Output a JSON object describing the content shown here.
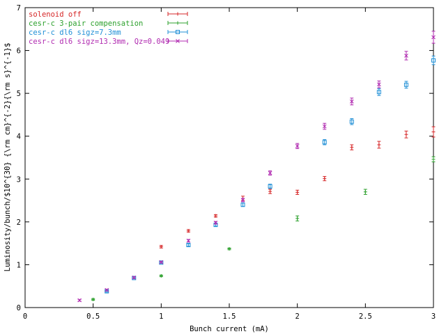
{
  "chart_data": {
    "type": "scatter",
    "xlabel": "Bunch current (mA)",
    "ylabel": "Luminosity/bunch/$10^{30} {\\rm cm}^{-2}{\\rm s}^{-1}$",
    "xlim": [
      0,
      3
    ],
    "ylim": [
      0,
      7
    ],
    "x_ticks": [
      "0",
      "0.5",
      "1",
      "1.5",
      "2",
      "2.5",
      "3"
    ],
    "y_ticks": [
      "0",
      "1",
      "2",
      "3",
      "4",
      "5",
      "6",
      "7"
    ],
    "grid": false,
    "legend_position": "top-left",
    "series": [
      {
        "name": "solenoid off",
        "color": "#d62728",
        "marker": "plus",
        "points": [
          {
            "x": 1.0,
            "y": 1.42,
            "err": 0.03
          },
          {
            "x": 1.2,
            "y": 1.79,
            "err": 0.03
          },
          {
            "x": 1.4,
            "y": 2.14,
            "err": 0.03
          },
          {
            "x": 1.6,
            "y": 2.55,
            "err": 0.05
          },
          {
            "x": 1.8,
            "y": 2.71,
            "err": 0.05
          },
          {
            "x": 2.0,
            "y": 2.69,
            "err": 0.05
          },
          {
            "x": 2.2,
            "y": 3.01,
            "err": 0.05
          },
          {
            "x": 2.4,
            "y": 3.74,
            "err": 0.06
          },
          {
            "x": 2.6,
            "y": 3.8,
            "err": 0.08
          },
          {
            "x": 2.8,
            "y": 4.04,
            "err": 0.08
          },
          {
            "x": 3.0,
            "y": 4.1,
            "err": 0.12
          }
        ]
      },
      {
        "name": "cesr-c 3-pair compensation",
        "color": "#2ca02c",
        "marker": "plus",
        "points": [
          {
            "x": 0.5,
            "y": 0.19,
            "err": 0.02
          },
          {
            "x": 1.0,
            "y": 0.74,
            "err": 0.02
          },
          {
            "x": 1.5,
            "y": 1.37,
            "err": 0.02
          },
          {
            "x": 2.0,
            "y": 2.08,
            "err": 0.06
          },
          {
            "x": 2.5,
            "y": 2.7,
            "err": 0.06
          },
          {
            "x": 3.0,
            "y": 3.46,
            "err": 0.06
          }
        ]
      },
      {
        "name": "cesr-c dl6 sigz=7.3mm",
        "color": "#1f8fd6",
        "marker": "square",
        "points": [
          {
            "x": 0.6,
            "y": 0.38,
            "err": 0.02
          },
          {
            "x": 0.8,
            "y": 0.69,
            "err": 0.02
          },
          {
            "x": 1.0,
            "y": 1.05,
            "err": 0.02
          },
          {
            "x": 1.2,
            "y": 1.46,
            "err": 0.03
          },
          {
            "x": 1.4,
            "y": 1.93,
            "err": 0.03
          },
          {
            "x": 1.6,
            "y": 2.4,
            "err": 0.04
          },
          {
            "x": 1.8,
            "y": 2.83,
            "err": 0.05
          },
          {
            "x": 2.2,
            "y": 3.86,
            "err": 0.06
          },
          {
            "x": 2.4,
            "y": 4.34,
            "err": 0.07
          },
          {
            "x": 2.6,
            "y": 5.03,
            "err": 0.08
          },
          {
            "x": 2.8,
            "y": 5.2,
            "err": 0.08
          },
          {
            "x": 3.0,
            "y": 5.77,
            "err": 0.1
          }
        ]
      },
      {
        "name": "cesr-c dl6 sigz=13.3mm, Qz=0.049",
        "color": "#b02ab0",
        "marker": "cross",
        "points": [
          {
            "x": 0.4,
            "y": 0.17,
            "err": 0.02
          },
          {
            "x": 0.6,
            "y": 0.41,
            "err": 0.02
          },
          {
            "x": 0.8,
            "y": 0.7,
            "err": 0.02
          },
          {
            "x": 1.0,
            "y": 1.06,
            "err": 0.02
          },
          {
            "x": 1.2,
            "y": 1.56,
            "err": 0.03
          },
          {
            "x": 1.4,
            "y": 1.98,
            "err": 0.03
          },
          {
            "x": 1.6,
            "y": 2.51,
            "err": 0.04
          },
          {
            "x": 1.8,
            "y": 3.14,
            "err": 0.05
          },
          {
            "x": 2.0,
            "y": 3.77,
            "err": 0.06
          },
          {
            "x": 2.2,
            "y": 4.23,
            "err": 0.07
          },
          {
            "x": 2.4,
            "y": 4.81,
            "err": 0.08
          },
          {
            "x": 2.6,
            "y": 5.21,
            "err": 0.08
          },
          {
            "x": 2.8,
            "y": 5.88,
            "err": 0.1
          },
          {
            "x": 3.0,
            "y": 6.31,
            "err": 0.14
          }
        ]
      }
    ]
  }
}
